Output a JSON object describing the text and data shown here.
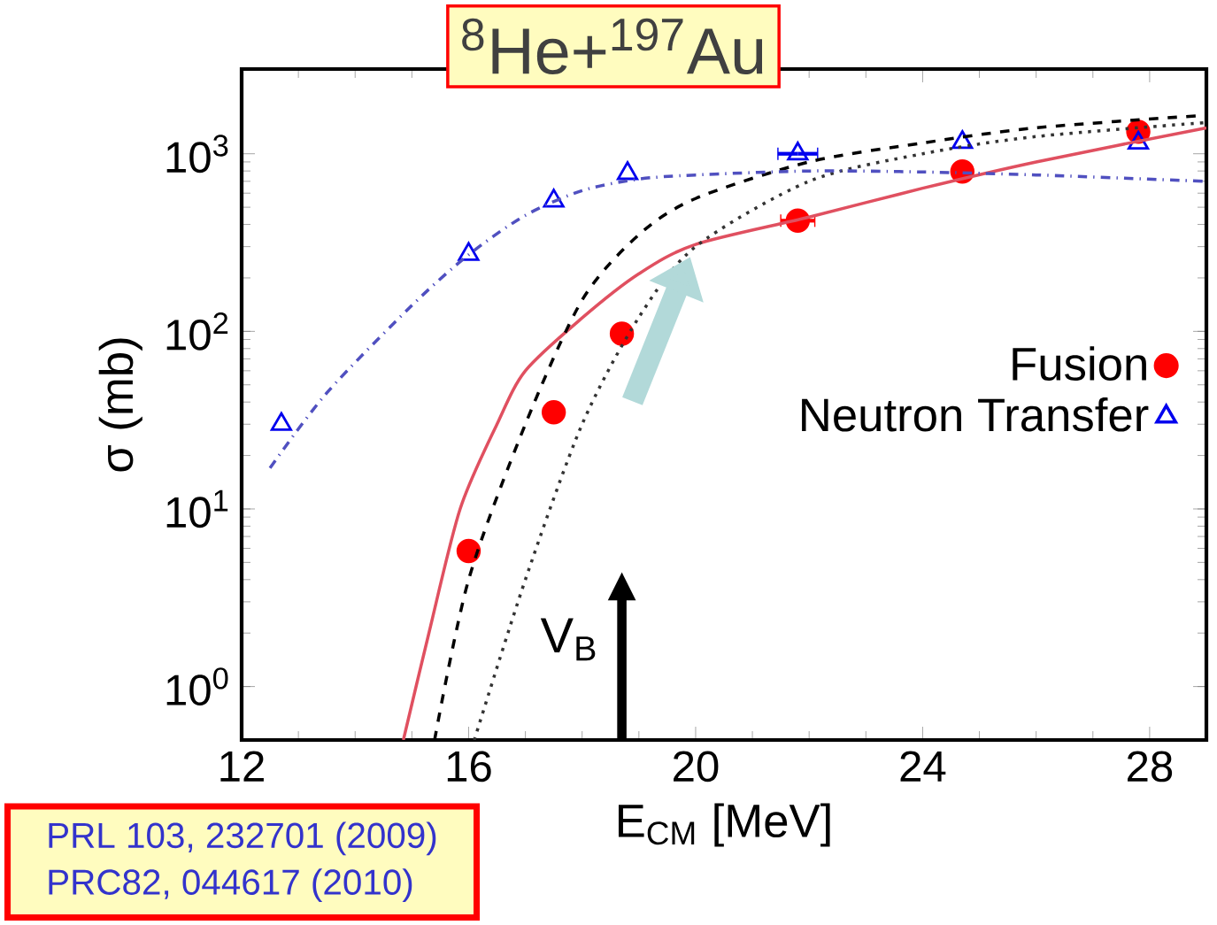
{
  "chart_data": {
    "type": "scatter",
    "title": "$^{8}$He+$^{197}$Au",
    "xlabel": "E$_{CM}$ [MeV]",
    "ylabel": "σ (mb)",
    "annotations": [
      "PRL 103, 232701 (2009)",
      "PRC82, 044617 (2010)"
    ],
    "xlim": [
      12,
      29
    ],
    "ylim": [
      0.5,
      3000
    ],
    "log": "y",
    "legend": "right",
    "xticks": [
      12,
      16,
      20,
      24,
      28
    ],
    "yticks": [
      {
        "value": 1,
        "label": "10$^{0}$"
      },
      {
        "value": 10,
        "label": "10$^{1}$"
      },
      {
        "value": 100,
        "label": "10$^{2}$"
      },
      {
        "value": 1000,
        "label": "10$^{3}$"
      }
    ],
    "ref_lines": [
      {
        "axis": "x",
        "value": 18.7,
        "label": "V$_{B}$",
        "color": "#000000"
      }
    ],
    "series": [
      {
        "name": "Fusion",
        "color": "#ff0000",
        "marker": "circle",
        "x": [
          16,
          17.5,
          18.7,
          21.8,
          24.7,
          27.8
        ],
        "values": [
          5.8,
          35,
          97,
          420,
          795,
          1330
        ],
        "xerrors": [
          null,
          null,
          null,
          0.3,
          null,
          null
        ]
      },
      {
        "name": "Neutron Transfer",
        "color": "#0000ee",
        "marker": "triangle",
        "x": [
          12.7,
          16,
          17.5,
          18.8,
          21.8,
          24.7,
          27.8
        ],
        "values": [
          30,
          272,
          543,
          776,
          1000,
          1160,
          1150
        ],
        "xerrors": [
          null,
          null,
          null,
          null,
          0.35,
          null,
          null
        ]
      },
      {
        "type": "line",
        "color": "#e05060",
        "line_style": "solid",
        "x": [
          14.85,
          15.3,
          15.85,
          16.5,
          17,
          18,
          19,
          20,
          22,
          24,
          26,
          29
        ],
        "values": [
          0.5,
          2,
          10,
          30,
          60,
          119,
          211,
          309,
          440,
          640,
          900,
          1400
        ]
      },
      {
        "type": "line",
        "color": "#000000",
        "line_style": "dashed",
        "x": [
          15.4,
          16,
          17,
          18,
          19,
          20,
          22,
          24,
          26,
          29
        ],
        "values": [
          0.5,
          4,
          30,
          150,
          350,
          560,
          900,
          1150,
          1400,
          1650
        ]
      },
      {
        "type": "line",
        "color": "#333333",
        "line_style": "dotted",
        "x": [
          16.1,
          17,
          18,
          19,
          20,
          22,
          24,
          26,
          29
        ],
        "values": [
          0.5,
          4,
          30,
          120,
          300,
          700,
          1000,
          1250,
          1500
        ]
      },
      {
        "type": "line",
        "color": "#5050c0",
        "line_style": "dashdotted",
        "x": [
          12.5,
          13.5,
          15,
          16,
          17,
          18,
          19,
          20,
          22,
          24,
          26,
          29
        ],
        "values": [
          17,
          45,
          140,
          270,
          450,
          620,
          720,
          760,
          800,
          790,
          760,
          700
        ]
      }
    ]
  }
}
